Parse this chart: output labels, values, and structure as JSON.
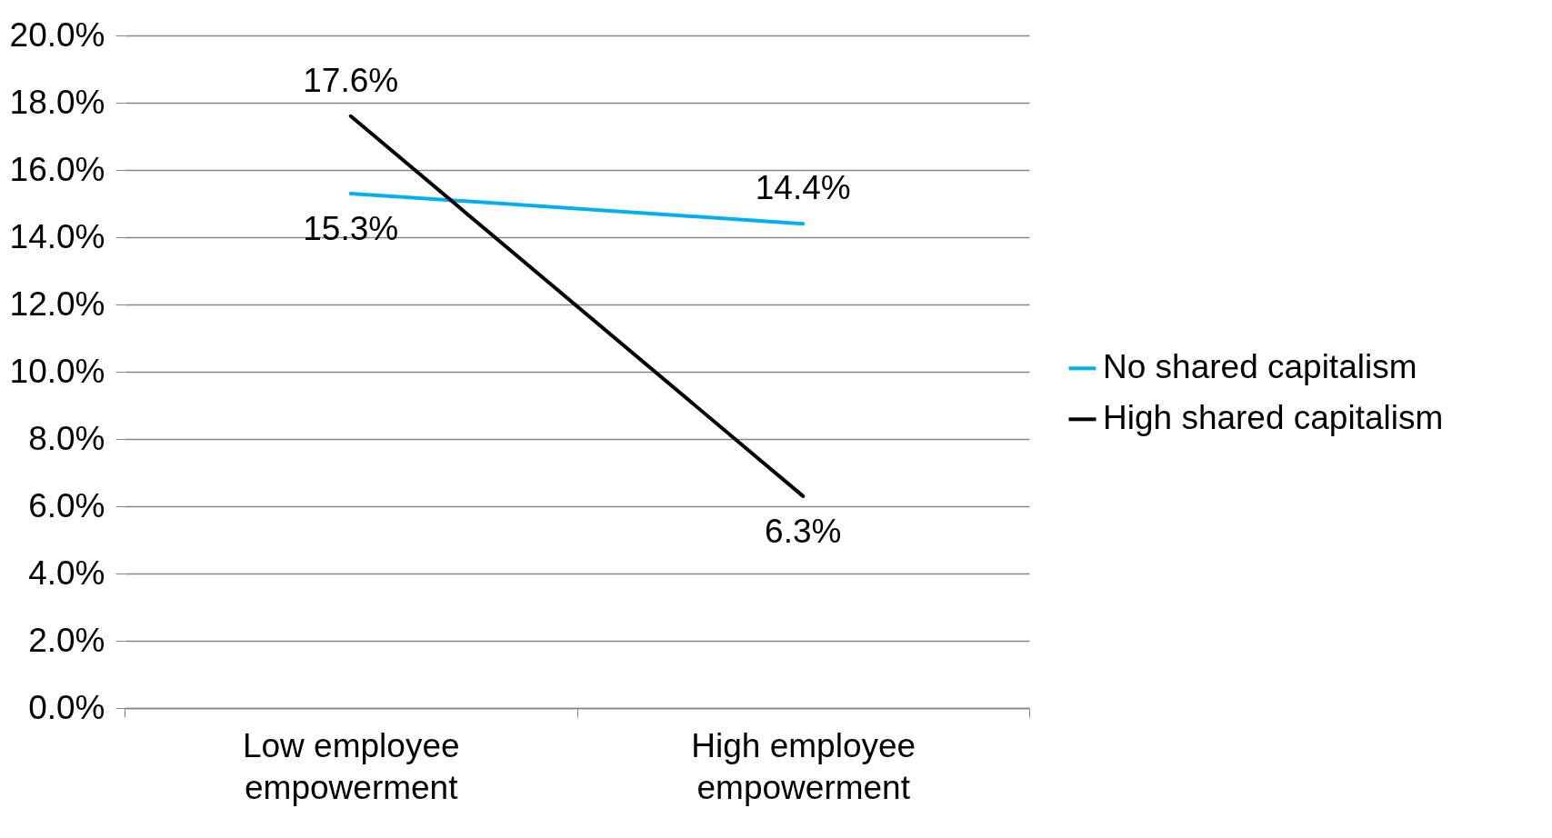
{
  "chart_data": {
    "type": "line",
    "categories": [
      "Low employee empowerment",
      "High employee empowerment"
    ],
    "series": [
      {
        "name": "No shared capitalism",
        "color": "#00b0f0",
        "values": [
          15.3,
          14.4
        ],
        "value_labels": [
          "15.3%",
          "14.4%"
        ]
      },
      {
        "name": "High shared capitalism",
        "color": "#000000",
        "values": [
          17.6,
          6.3
        ],
        "value_labels": [
          "17.6%",
          "6.3%"
        ]
      }
    ],
    "ylim": [
      0,
      20
    ],
    "yticks": [
      {
        "value": 0,
        "label": "0.0%"
      },
      {
        "value": 2,
        "label": "2.0%"
      },
      {
        "value": 4,
        "label": "4.0%"
      },
      {
        "value": 6,
        "label": "6.0%"
      },
      {
        "value": 8,
        "label": "8.0%"
      },
      {
        "value": 10,
        "label": "10.0%"
      },
      {
        "value": 12,
        "label": "12.0%"
      },
      {
        "value": 14,
        "label": "14.0%"
      },
      {
        "value": 16,
        "label": "16.0%"
      },
      {
        "value": 18,
        "label": "18.0%"
      },
      {
        "value": 20,
        "label": "20.0%"
      }
    ],
    "grid": "y",
    "legend": "right",
    "marker": "none"
  }
}
